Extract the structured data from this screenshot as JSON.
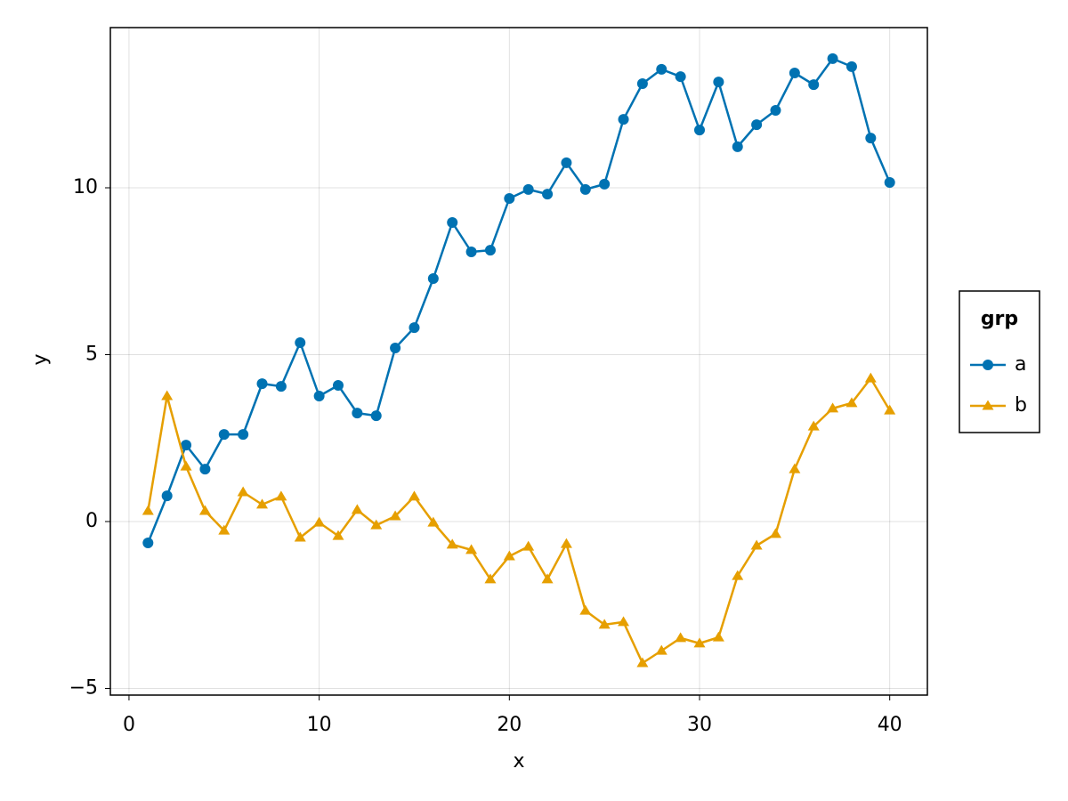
{
  "chart_data": {
    "type": "line",
    "x_label": "x",
    "y_label": "y",
    "x": [
      1,
      2,
      3,
      4,
      5,
      6,
      7,
      8,
      9,
      10,
      11,
      12,
      13,
      14,
      15,
      16,
      17,
      18,
      19,
      20,
      21,
      22,
      23,
      24,
      25,
      26,
      27,
      28,
      29,
      30,
      31,
      32,
      33,
      34,
      35,
      36,
      37,
      38,
      39,
      40
    ],
    "series": [
      {
        "name": "a",
        "color": "#0072b2",
        "marker": "circle",
        "values": [
          -0.64,
          0.77,
          2.29,
          1.57,
          2.61,
          2.61,
          4.13,
          4.05,
          5.36,
          3.76,
          4.08,
          3.25,
          3.17,
          5.2,
          5.81,
          7.28,
          8.96,
          8.08,
          8.13,
          9.68,
          9.95,
          9.81,
          10.75,
          9.95,
          10.11,
          12.05,
          13.12,
          13.55,
          13.33,
          11.73,
          13.17,
          11.23,
          11.89,
          12.32,
          13.44,
          13.09,
          13.87,
          13.63,
          11.49,
          10.16
        ]
      },
      {
        "name": "b",
        "color": "#e69f00",
        "marker": "triangle",
        "values": [
          0.32,
          3.76,
          1.65,
          0.32,
          -0.27,
          0.88,
          0.51,
          0.75,
          -0.48,
          -0.03,
          -0.43,
          0.35,
          -0.11,
          0.16,
          0.75,
          -0.03,
          -0.69,
          -0.85,
          -1.73,
          -1.04,
          -0.75,
          -1.73,
          -0.67,
          -2.67,
          -3.09,
          -3.01,
          -4.24,
          -3.87,
          -3.49,
          -3.65,
          -3.47,
          -1.63,
          -0.72,
          -0.37,
          1.57,
          2.85,
          3.39,
          3.55,
          4.29,
          3.33
        ]
      }
    ],
    "legend_title": "grp",
    "legend_position": "right",
    "xlim": [
      -0.98,
      41.98
    ],
    "ylim": [
      -5.2,
      14.8
    ],
    "xticks": [
      0,
      10,
      20,
      30,
      40
    ],
    "yticks": [
      {
        "value": -5,
        "label": "−5"
      },
      0,
      5,
      10
    ],
    "grid": true
  }
}
